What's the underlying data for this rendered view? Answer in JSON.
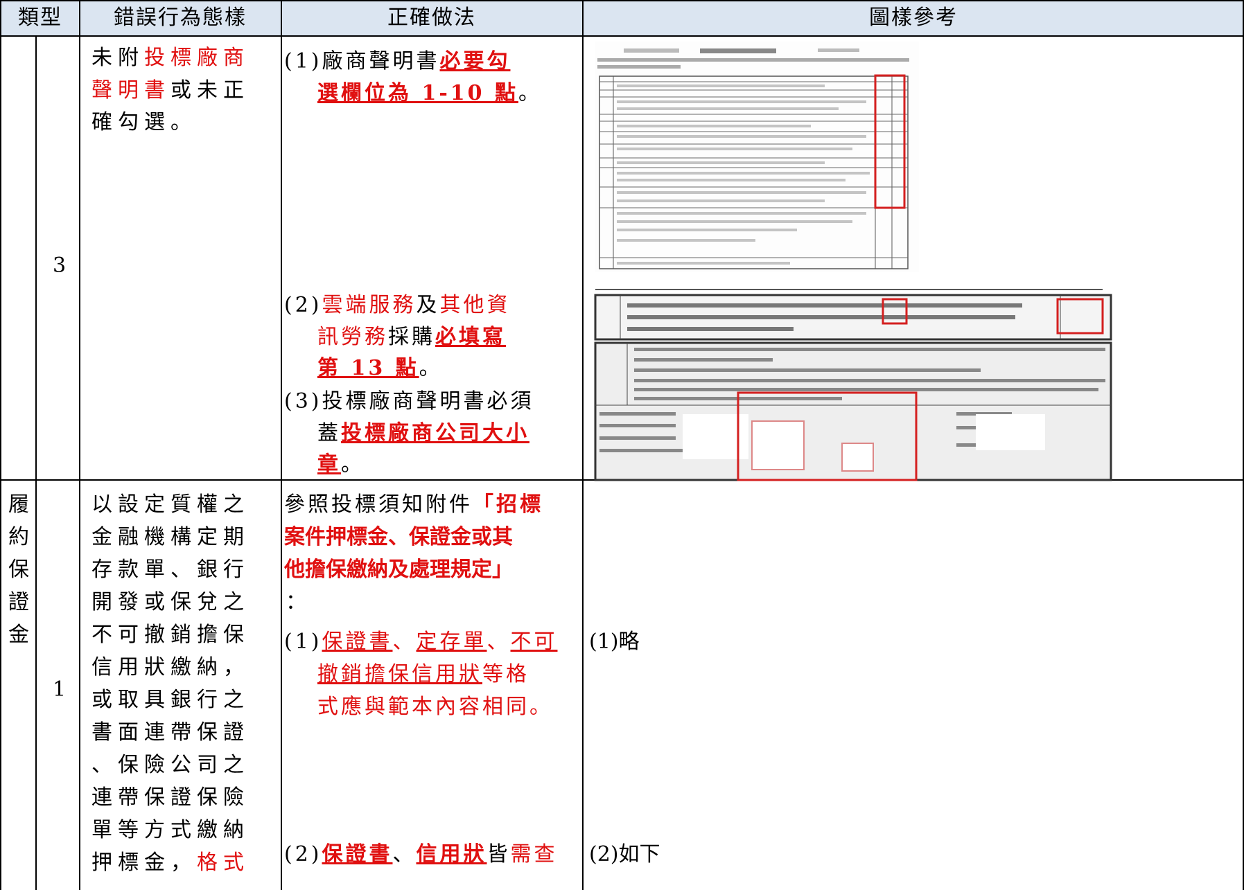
{
  "table": {
    "header": [
      "類型",
      "錯誤行為態樣",
      "正確做法",
      "圖樣參考"
    ],
    "rows": [
      {
        "number": "3",
        "error": [
          [
            "未附",
            "投標廠商"
          ],
          [
            "聲明書",
            "或未正"
          ],
          [
            "確勾選。"
          ]
        ],
        "correct": [
          [
            "(1)廠商聲明書",
            "必要勾"
          ],
          [
            "選欄位為 1-10 點",
            "。"
          ],
          [
            "(2)",
            "雲端服務",
            "及",
            "其他資"
          ],
          [
            "訊勞務",
            "採購",
            "必填寫"
          ],
          [
            "第 13 點",
            "。"
          ],
          [
            "(3)投標廠商聲明書必須"
          ],
          [
            "蓋",
            "投標廠商公司大小"
          ],
          [
            "章",
            "。"
          ]
        ]
      },
      {
        "type": [
          "履",
          "約",
          "保",
          "證",
          "金"
        ],
        "number": "1",
        "error": [
          [
            "以設定質權之"
          ],
          [
            "金融機構定期"
          ],
          [
            "存款單、銀行"
          ],
          [
            "開發或保兌之"
          ],
          [
            "不可撤銷擔保"
          ],
          [
            "信用狀繳納，"
          ],
          [
            "或取具銀行之"
          ],
          [
            "書面連帶保證"
          ],
          [
            "、保險公司之"
          ],
          [
            "連帶保證保險"
          ],
          [
            "單等方式繳納"
          ],
          [
            "押標金，",
            "格式"
          ]
        ],
        "correct": [
          [
            "參照投標須知附件",
            "「招標"
          ],
          [
            "案件押標金、保證金或其"
          ],
          [
            "他擔保繳納及處理規定」"
          ],
          [
            "："
          ],
          [
            "(1)",
            "保證書",
            "、",
            "定存單",
            "、",
            "不可"
          ],
          [
            "撤銷擔保信用狀",
            "等格"
          ],
          [
            "式應與範本內容相同。"
          ],
          [
            "(2)",
            "保證書",
            "、",
            "信用狀",
            "皆",
            "需查"
          ]
        ],
        "reference": [
          "(1)略",
          "(2)如下"
        ]
      }
    ]
  }
}
